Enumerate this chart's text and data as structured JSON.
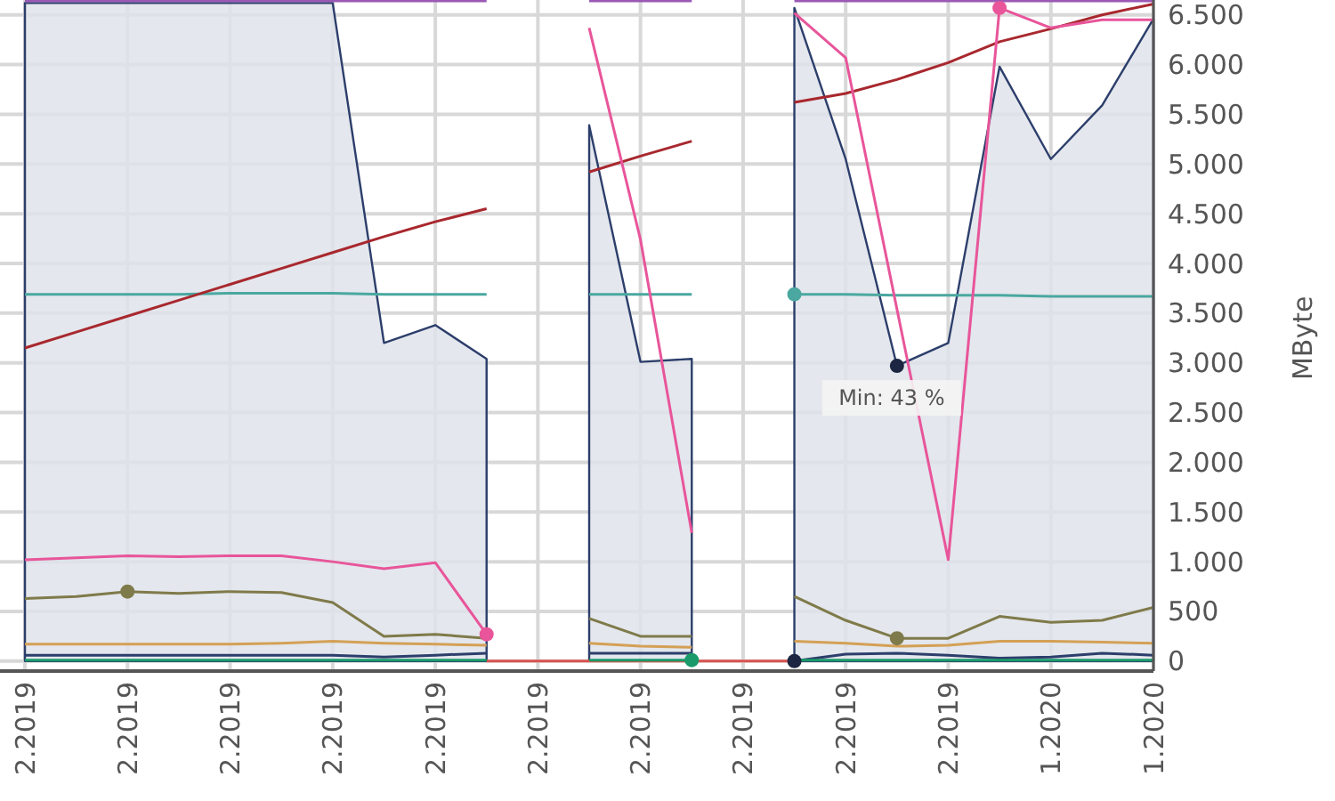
{
  "chart_data": {
    "type": "line",
    "ylabel": "MByte",
    "grid": true,
    "categories": [
      "2.2019",
      null,
      "2.2019",
      null,
      "2.2019",
      null,
      "2.2019",
      null,
      "2.2019",
      null,
      "2.2019",
      null,
      "2.2019",
      null,
      "2.2019",
      null,
      "2.2019",
      null,
      "2.2019",
      null,
      "1.2020",
      null,
      "1.2020"
    ],
    "ylim": [
      -100,
      6650
    ],
    "yticks": [
      0,
      500,
      {
        "value": 1000,
        "label": "1.000"
      },
      {
        "value": 1500,
        "label": "1.500"
      },
      {
        "value": 2000,
        "label": "2.000"
      },
      {
        "value": 2500,
        "label": "2.500"
      },
      {
        "value": 3000,
        "label": "3.000"
      },
      {
        "value": 3500,
        "label": "3.500"
      },
      {
        "value": 4000,
        "label": "4.000"
      },
      {
        "value": 4500,
        "label": "4.500"
      },
      {
        "value": 5000,
        "label": "5.000"
      },
      {
        "value": 5500,
        "label": "5.500"
      },
      {
        "value": 6000,
        "label": "6.000"
      },
      {
        "value": 6500,
        "label": "6.500"
      }
    ],
    "series": [
      {
        "type": "area",
        "color": "#2c3e6b",
        "values": [
          6620,
          6620,
          6620,
          6620,
          6620,
          6620,
          6620,
          3200,
          3380,
          3040,
          null,
          5390,
          3010,
          3040,
          null,
          6570,
          5050,
          2970,
          3200,
          5980,
          5050,
          5590,
          6460
        ]
      },
      {
        "color": "#9b59b6",
        "values": [
          6640,
          6640,
          6640,
          6640,
          6640,
          6640,
          6640,
          6640,
          6640,
          6640,
          null,
          6640,
          6640,
          6640,
          null,
          6640,
          6640,
          6640,
          6640,
          6640,
          6640,
          6640,
          6640
        ]
      },
      {
        "color": "#d9534f",
        "values": [
          null,
          null,
          null,
          null,
          null,
          null,
          null,
          null,
          null,
          0,
          0,
          0,
          0,
          0,
          0,
          0,
          null,
          null,
          null,
          null,
          null,
          null,
          null
        ]
      },
      {
        "color": "#4aa8a0",
        "values": [
          3690,
          3690,
          3690,
          3690,
          3700,
          3700,
          3700,
          3690,
          3690,
          3690,
          null,
          3690,
          3690,
          3690,
          null,
          3690,
          3690,
          3680,
          3680,
          3680,
          3670,
          3670,
          3670
        ]
      },
      {
        "color": "#a8282e",
        "values": [
          3150,
          3310,
          3470,
          3630,
          3790,
          3950,
          4110,
          4270,
          4420,
          4550,
          null,
          4920,
          5080,
          5230,
          null,
          5620,
          5710,
          5850,
          6020,
          6230,
          6360,
          6500,
          6610
        ]
      },
      {
        "color": "#e8559a",
        "values": [
          1020,
          1040,
          1060,
          1050,
          1060,
          1060,
          1000,
          930,
          990,
          270,
          null,
          6370,
          4240,
          1290,
          null,
          6520,
          6070,
          3540,
          1020,
          6570,
          6370,
          6450,
          6450
        ]
      },
      {
        "color": "#7f7a4a",
        "values": [
          630,
          650,
          700,
          680,
          700,
          690,
          590,
          250,
          270,
          230,
          null,
          430,
          250,
          250,
          null,
          650,
          410,
          230,
          230,
          450,
          390,
          410,
          540
        ]
      },
      {
        "color": "#d4a056",
        "values": [
          170,
          170,
          170,
          170,
          170,
          180,
          200,
          180,
          170,
          160,
          null,
          180,
          150,
          140,
          null,
          200,
          180,
          150,
          160,
          200,
          200,
          190,
          180
        ]
      },
      {
        "color": "#2c3e6b",
        "values": [
          60,
          60,
          60,
          60,
          60,
          60,
          60,
          40,
          60,
          80,
          null,
          80,
          80,
          80,
          null,
          0,
          70,
          80,
          60,
          30,
          40,
          80,
          60
        ]
      },
      {
        "color": "#1a9a6a",
        "values": [
          10,
          10,
          10,
          10,
          10,
          10,
          10,
          10,
          10,
          10,
          null,
          10,
          10,
          10,
          null,
          10,
          10,
          10,
          10,
          10,
          10,
          10,
          10
        ]
      },
      {
        "type": "scatter",
        "values": [
          null,
          null,
          700,
          null,
          null,
          null,
          null,
          null,
          null,
          270,
          null,
          null,
          null,
          10,
          null,
          3690,
          null,
          2970,
          null,
          6570,
          null,
          null,
          null
        ],
        "colors": [
          null,
          null,
          "#7f7a4a",
          null,
          null,
          null,
          null,
          null,
          null,
          "#e8559a",
          null,
          null,
          null,
          "#1a9a6a",
          null,
          "#4aa8a0",
          null,
          "#1c2541",
          null,
          "#e8559a",
          null,
          null,
          null
        ]
      },
      {
        "type": "scatter",
        "values": [
          null,
          null,
          null,
          null,
          null,
          null,
          null,
          null,
          null,
          null,
          null,
          null,
          null,
          null,
          null,
          0,
          null,
          230,
          null,
          null,
          null,
          null,
          null
        ],
        "colors": [
          null,
          null,
          null,
          null,
          null,
          null,
          null,
          null,
          null,
          null,
          null,
          null,
          null,
          null,
          null,
          "#1c2541",
          null,
          "#7f7a4a",
          null,
          null,
          null,
          null,
          null
        ]
      }
    ],
    "annotations": [
      {
        "text": "Min: 43 %",
        "y": 2970
      }
    ]
  }
}
